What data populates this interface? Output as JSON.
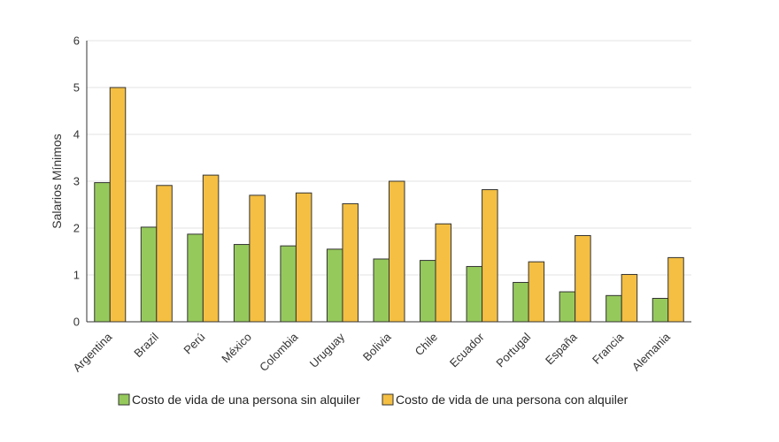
{
  "chart_data": {
    "type": "bar",
    "title": "",
    "xlabel": "",
    "ylabel": "Salarios Mínimos",
    "ylim": [
      0,
      6
    ],
    "yticks": [
      0,
      1,
      2,
      3,
      4,
      5,
      6
    ],
    "grid": true,
    "legend_position": "bottom",
    "categories": [
      "Argentina",
      "Brazil",
      "Perú",
      "México",
      "Colombia",
      "Uruguay",
      "Bolivia",
      "Chile",
      "Ecuador",
      "Portugal",
      "España",
      "Francia",
      "Alemania"
    ],
    "series": [
      {
        "name": "Costo de vida de una persona sin alquiler",
        "color": "#96c95c",
        "values": [
          2.97,
          2.02,
          1.87,
          1.65,
          1.62,
          1.55,
          1.34,
          1.31,
          1.18,
          0.84,
          0.64,
          0.56,
          0.5
        ]
      },
      {
        "name": "Costo de vida de una persona con alquiler",
        "color": "#f4bf42",
        "values": [
          5.0,
          2.91,
          3.13,
          2.7,
          2.75,
          2.52,
          3.0,
          2.09,
          2.82,
          1.28,
          1.84,
          1.01,
          1.37
        ]
      }
    ]
  }
}
